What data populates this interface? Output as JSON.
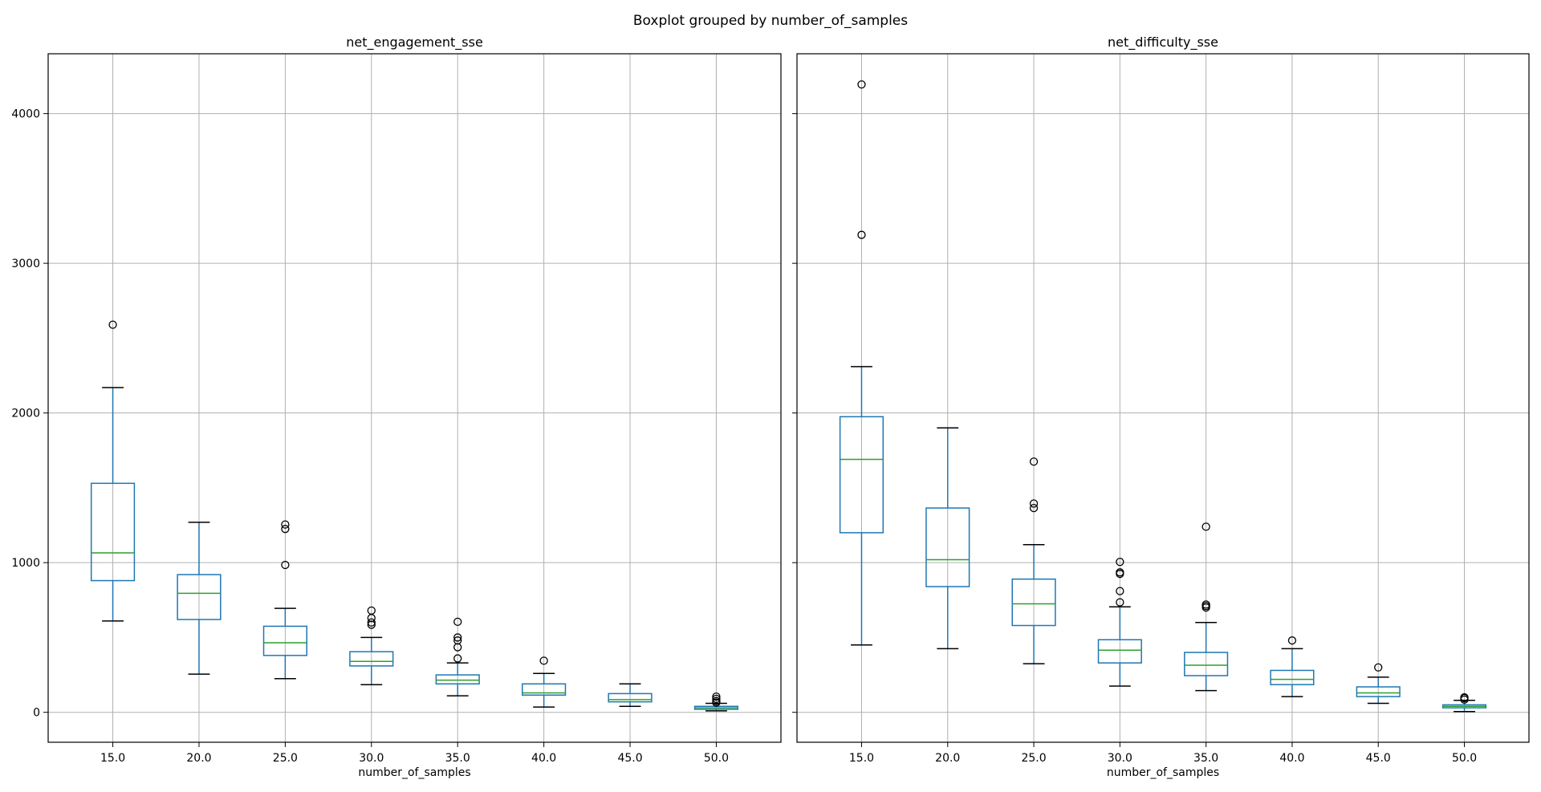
{
  "figure": {
    "suptitle": "Boxplot grouped by number_of_samples"
  },
  "chart_data": [
    {
      "type": "boxplot",
      "title": "net_engagement_sse",
      "xlabel": "number_of_samples",
      "ylabel": "",
      "categories": [
        "15.0",
        "20.0",
        "25.0",
        "30.0",
        "35.0",
        "40.0",
        "45.0",
        "50.0"
      ],
      "ylim": [
        -200,
        4400
      ],
      "yticks": [
        0,
        1000,
        2000,
        3000,
        4000
      ],
      "grid": true,
      "boxes": [
        {
          "whislo": 610,
          "q1": 880,
          "med": 1065,
          "q3": 1530,
          "whishi": 2170,
          "fliers": [
            2590
          ]
        },
        {
          "whislo": 255,
          "q1": 620,
          "med": 795,
          "q3": 920,
          "whishi": 1270,
          "fliers": []
        },
        {
          "whislo": 225,
          "q1": 380,
          "med": 465,
          "q3": 575,
          "whishi": 695,
          "fliers": [
            985,
            1225,
            1255
          ]
        },
        {
          "whislo": 185,
          "q1": 310,
          "med": 340,
          "q3": 405,
          "whishi": 500,
          "fliers": [
            585,
            600,
            630,
            680
          ]
        },
        {
          "whislo": 110,
          "q1": 190,
          "med": 215,
          "q3": 250,
          "whishi": 330,
          "fliers": [
            360,
            435,
            480,
            500,
            605
          ]
        },
        {
          "whislo": 35,
          "q1": 115,
          "med": 130,
          "q3": 190,
          "whishi": 260,
          "fliers": [
            345
          ]
        },
        {
          "whislo": 40,
          "q1": 70,
          "med": 85,
          "q3": 125,
          "whishi": 190,
          "fliers": []
        },
        {
          "whislo": 10,
          "q1": 20,
          "med": 30,
          "q3": 40,
          "whishi": 60,
          "fliers": [
            65,
            75,
            90,
            105
          ]
        }
      ]
    },
    {
      "type": "boxplot",
      "title": "net_difficulty_sse",
      "xlabel": "number_of_samples",
      "ylabel": "",
      "categories": [
        "15.0",
        "20.0",
        "25.0",
        "30.0",
        "35.0",
        "40.0",
        "45.0",
        "50.0"
      ],
      "ylim": [
        -200,
        4400
      ],
      "yticks": [
        0,
        1000,
        2000,
        3000,
        4000
      ],
      "grid": true,
      "boxes": [
        {
          "whislo": 450,
          "q1": 1200,
          "med": 1690,
          "q3": 1975,
          "whishi": 2310,
          "fliers": [
            3190,
            4195
          ]
        },
        {
          "whislo": 425,
          "q1": 840,
          "med": 1020,
          "q3": 1365,
          "whishi": 1900,
          "fliers": []
        },
        {
          "whislo": 325,
          "q1": 580,
          "med": 725,
          "q3": 890,
          "whishi": 1120,
          "fliers": [
            1365,
            1395,
            1675
          ]
        },
        {
          "whislo": 175,
          "q1": 330,
          "med": 415,
          "q3": 485,
          "whishi": 705,
          "fliers": [
            735,
            810,
            925,
            935,
            1005
          ]
        },
        {
          "whislo": 145,
          "q1": 245,
          "med": 315,
          "q3": 400,
          "whishi": 600,
          "fliers": [
            700,
            710,
            720,
            1240
          ]
        },
        {
          "whislo": 105,
          "q1": 185,
          "med": 220,
          "q3": 280,
          "whishi": 425,
          "fliers": [
            480
          ]
        },
        {
          "whislo": 60,
          "q1": 105,
          "med": 130,
          "q3": 170,
          "whishi": 235,
          "fliers": [
            300
          ]
        },
        {
          "whislo": 5,
          "q1": 30,
          "med": 40,
          "q3": 50,
          "whishi": 80,
          "fliers": [
            85,
            95,
            100
          ]
        }
      ]
    }
  ]
}
